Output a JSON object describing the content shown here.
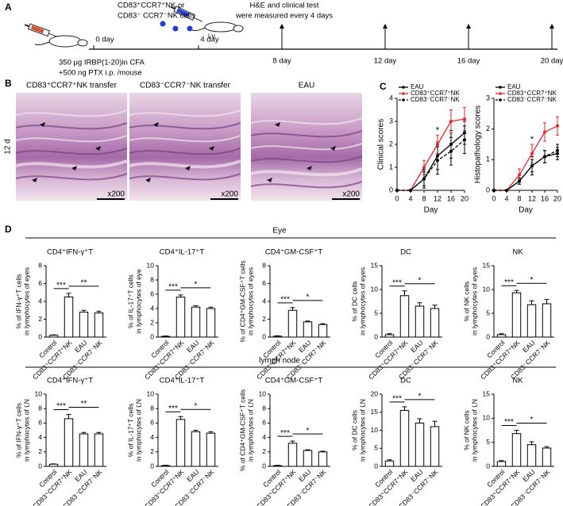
{
  "panel_labels": [
    "A",
    "B",
    "C",
    "D"
  ],
  "panel_a": {
    "cells_line1": "CD83⁺CCR7⁺NK or",
    "cells_line2": "CD83⁻ CCR7⁻NK cells",
    "route": "i.v.",
    "measure_line1": "H&E and clinical test",
    "measure_line2": "were measured every 4 days",
    "immunization_line1": "350 μg IRBP(1-20)in CFA",
    "immunization_line2": "+500 ng PTX i.p. /mouse",
    "days": [
      "0 day",
      "4 day",
      "8 day",
      "12 day",
      "16 day",
      "20 day"
    ]
  },
  "panel_b": {
    "side_label": "12 d",
    "images": [
      {
        "caption": "CD83⁺CCR7⁺NK transfer",
        "magnification": "x200"
      },
      {
        "caption": "CD83⁻CCR7⁻NK transfer",
        "magnification": "x200"
      },
      {
        "caption": "EAU",
        "magnification": "x200"
      }
    ]
  },
  "panel_d": {
    "row_headers": [
      "Eye",
      "lymph node"
    ]
  },
  "chart_data": [
    {
      "type": "line",
      "ylabel": "Clinical scores",
      "xlabel": "Day",
      "x": [
        0,
        4,
        8,
        12,
        16,
        20
      ],
      "xlim": [
        0,
        20
      ],
      "xticks": [
        0,
        4,
        8,
        12,
        16,
        20
      ],
      "ylim": [
        0,
        4
      ],
      "yticks": [
        0,
        1,
        2,
        3,
        4
      ],
      "series": [
        {
          "name": "EAU",
          "color": "#000000",
          "dash": false,
          "values": [
            0,
            0,
            0.5,
            1.5,
            2,
            2.5
          ],
          "errors": [
            0,
            0,
            0.3,
            0.6,
            0.6,
            0.5
          ]
        },
        {
          "name": "CD83⁺CCR7⁺NK",
          "color": "#e8262b",
          "dash": false,
          "values": [
            0,
            0,
            1,
            2,
            3,
            3.1
          ],
          "errors": [
            0,
            0,
            0.3,
            0.4,
            0.5,
            0.5
          ]
        },
        {
          "name": "CD83⁻CCR7⁻NK",
          "color": "#000000",
          "dash": true,
          "values": [
            0,
            0,
            0.5,
            1.3,
            1.7,
            2.2
          ],
          "errors": [
            0,
            0,
            0.4,
            0.6,
            0.6,
            0.6
          ]
        }
      ],
      "annotations": [
        {
          "text": "*",
          "x": 12
        }
      ]
    },
    {
      "type": "line",
      "ylabel": "Histopathology scores",
      "xlabel": "Day",
      "x": [
        0,
        4,
        8,
        12,
        16,
        20
      ],
      "xlim": [
        0,
        20
      ],
      "xticks": [
        0,
        4,
        8,
        12,
        16,
        20
      ],
      "ylim": [
        0,
        3
      ],
      "yticks": [
        0,
        1,
        2,
        3
      ],
      "series": [
        {
          "name": "EAU",
          "color": "#000000",
          "dash": false,
          "values": [
            0,
            0,
            0.3,
            0.8,
            1.1,
            1.2
          ],
          "errors": [
            0,
            0,
            0.1,
            0.3,
            0.2,
            0.2
          ]
        },
        {
          "name": "CD83⁺CCR7⁺NK",
          "color": "#e8262b",
          "dash": false,
          "values": [
            0,
            0,
            0.5,
            1.2,
            1.9,
            2.1
          ],
          "errors": [
            0,
            0,
            0.2,
            0.3,
            0.3,
            0.3
          ]
        },
        {
          "name": "CD83⁻CCR7⁻NK",
          "color": "#000000",
          "dash": true,
          "values": [
            0,
            0,
            0.3,
            0.8,
            1.1,
            1.3
          ],
          "errors": [
            0,
            0,
            0.1,
            0.2,
            0.2,
            0.2
          ]
        }
      ],
      "annotations": [
        {
          "text": "*",
          "x": 12
        }
      ]
    },
    {
      "type": "bar",
      "title": "CD4⁺IFN-γ⁺T",
      "ylabel": [
        "% of IFN-γ⁺T cells",
        "in lymphocytes of eyes"
      ],
      "categories": [
        "Control",
        "CD83⁺CCR7⁺NK",
        "EAU",
        "CD83⁻CCR7⁻NK"
      ],
      "values": [
        0.2,
        4.5,
        2.8,
        2.7
      ],
      "errors": [
        0.05,
        0.4,
        0.2,
        0.2
      ],
      "ylim": [
        0,
        8
      ],
      "yticks": [
        0,
        2,
        4,
        6,
        8
      ],
      "color": "#ffffff",
      "annotations": [
        {
          "text": "***",
          "between": [
            "Control",
            "CD83⁺CCR7⁺NK"
          ]
        },
        {
          "text": "**",
          "between": [
            "CD83⁺CCR7⁺NK",
            "CD83⁻CCR7⁻NK"
          ]
        }
      ]
    },
    {
      "type": "bar",
      "title": "CD4⁺IL-17⁺T",
      "ylabel": [
        "% of IL-17⁺T cells",
        "in lymphocytes of eye"
      ],
      "categories": [
        "Control",
        "CD83⁺CCR7⁺NK",
        "EAU",
        "CD83⁻CCR7⁻NK"
      ],
      "values": [
        0.1,
        5.6,
        4.2,
        4.0
      ],
      "errors": [
        0.05,
        0.3,
        0.2,
        0.2
      ],
      "ylim": [
        0,
        10
      ],
      "yticks": [
        0,
        2,
        4,
        6,
        8,
        10
      ],
      "color": "#ffffff",
      "annotations": [
        {
          "text": "***",
          "between": [
            "Control",
            "CD83⁺CCR7⁺NK"
          ]
        },
        {
          "text": "*",
          "between": [
            "CD83⁺CCR7⁺NK",
            "CD83⁻CCR7⁻NK"
          ]
        }
      ]
    },
    {
      "type": "bar",
      "title": "CD4⁺GM-CSF⁺T",
      "ylabel": [
        "% of CD4⁺GM-CSF⁺T cells",
        "in lymphocytes of eyes"
      ],
      "categories": [
        "Control",
        "CD83⁺CCR7⁺NK",
        "EAU",
        "CD83⁻CCR7⁻NK"
      ],
      "values": [
        0.1,
        3.0,
        1.7,
        1.4
      ],
      "errors": [
        0.05,
        0.3,
        0.1,
        0.1
      ],
      "ylim": [
        0,
        8
      ],
      "yticks": [
        0,
        2,
        4,
        6,
        8
      ],
      "color": "#ffffff",
      "annotations": [
        {
          "text": "***",
          "between": [
            "Control",
            "CD83⁺CCR7⁺NK"
          ]
        },
        {
          "text": "*",
          "between": [
            "CD83⁺CCR7⁺NK",
            "CD83⁻CCR7⁻NK"
          ]
        }
      ]
    },
    {
      "type": "bar",
      "title": "DC",
      "ylabel": [
        "% of DC cells",
        "in lymphocytes of eyes"
      ],
      "categories": [
        "Control",
        "CD83⁺CCR7⁺NK",
        "EAU",
        "CD83⁻CCR7⁻NK"
      ],
      "values": [
        0.5,
        8.7,
        6.5,
        6.0
      ],
      "errors": [
        0.2,
        1.0,
        0.7,
        0.7
      ],
      "ylim": [
        0,
        15
      ],
      "yticks": [
        0,
        5,
        10,
        15
      ],
      "color": "#ffffff",
      "annotations": [
        {
          "text": "***",
          "between": [
            "Control",
            "CD83⁺CCR7⁺NK"
          ]
        },
        {
          "text": "*",
          "between": [
            "CD83⁺CCR7⁺NK",
            "CD83⁻CCR7⁻NK"
          ]
        }
      ]
    },
    {
      "type": "bar",
      "title": "NK",
      "ylabel": [
        "% of NK cells",
        "in lymphocytes of eyes"
      ],
      "categories": [
        "Control",
        "CD83⁺CCR7⁺NK",
        "EAU",
        "CD83⁻CCR7⁻NK"
      ],
      "values": [
        0.5,
        9.3,
        6.8,
        7.0
      ],
      "errors": [
        0.2,
        0.5,
        0.8,
        0.9
      ],
      "ylim": [
        0,
        15
      ],
      "yticks": [
        0,
        5,
        10,
        15
      ],
      "color": "#ffffff",
      "annotations": [
        {
          "text": "***",
          "between": [
            "Control",
            "CD83⁺CCR7⁺NK"
          ]
        },
        {
          "text": "*",
          "between": [
            "CD83⁺CCR7⁺NK",
            "CD83⁻CCR7⁻NK"
          ]
        }
      ]
    },
    {
      "type": "bar",
      "title": "CD4⁺IFN-γ⁺T",
      "ylabel": [
        "% of IFN-γ⁺T cells",
        "in lymphocytes of LN"
      ],
      "categories": [
        "Control",
        "CD83⁺CCR7⁺NK",
        "EAU",
        "CD83⁻CCR7⁻NK"
      ],
      "values": [
        0.3,
        6.6,
        4.5,
        4.5
      ],
      "errors": [
        0.05,
        0.6,
        0.2,
        0.2
      ],
      "ylim": [
        0,
        10
      ],
      "yticks": [
        0,
        2,
        4,
        6,
        8,
        10
      ],
      "color": "#ffffff",
      "annotations": [
        {
          "text": "***",
          "between": [
            "Control",
            "CD83⁺CCR7⁺NK"
          ]
        },
        {
          "text": "**",
          "between": [
            "CD83⁺CCR7⁺NK",
            "CD83⁻CCR7⁻NK"
          ]
        }
      ]
    },
    {
      "type": "bar",
      "title": "CD4⁺IL-17⁺T",
      "ylabel": [
        "% of IL-17⁺T cells",
        "in lymphocytes of LN"
      ],
      "categories": [
        "Control",
        "CD83⁺CCR7⁺NK",
        "EAU",
        "CD83⁻CCR7⁻NK"
      ],
      "values": [
        0.1,
        6.5,
        4.8,
        4.6
      ],
      "errors": [
        0.05,
        0.4,
        0.2,
        0.2
      ],
      "ylim": [
        0,
        10
      ],
      "yticks": [
        0,
        2,
        4,
        6,
        8,
        10
      ],
      "color": "#ffffff",
      "annotations": [
        {
          "text": "***",
          "between": [
            "Control",
            "CD83⁺CCR7⁺NK"
          ]
        },
        {
          "text": "*",
          "between": [
            "CD83⁺CCR7⁺NK",
            "CD83⁻CCR7⁻NK"
          ]
        }
      ]
    },
    {
      "type": "bar",
      "title": "CD4⁺GM-CSF⁺T",
      "ylabel": [
        "% of CD4⁺GM-CSF⁺T cells",
        "in lymphocytes of LN"
      ],
      "categories": [
        "Control",
        "CD83⁺CCR7⁺NK",
        "EAU",
        "CD83⁻CCR7⁻NK"
      ],
      "values": [
        0.1,
        3.2,
        2.2,
        2.0
      ],
      "errors": [
        0.05,
        0.3,
        0.1,
        0.1
      ],
      "ylim": [
        0,
        10
      ],
      "yticks": [
        0,
        2,
        4,
        6,
        8,
        10
      ],
      "color": "#ffffff",
      "annotations": [
        {
          "text": "***",
          "between": [
            "Control",
            "CD83⁺CCR7⁺NK"
          ]
        },
        {
          "text": "*",
          "between": [
            "CD83⁺CCR7⁺NK",
            "CD83⁻CCR7⁻NK"
          ]
        }
      ]
    },
    {
      "type": "bar",
      "title": "DC",
      "ylabel": [
        "% of DC cells",
        "in lymphocytes of LN"
      ],
      "categories": [
        "Control",
        "CD83⁺CCR7⁺NK",
        "EAU",
        "CD83⁻CCR7⁻NK"
      ],
      "values": [
        1.5,
        15.5,
        12,
        11
      ],
      "errors": [
        0.3,
        1.0,
        1.2,
        1.5
      ],
      "ylim": [
        0,
        20
      ],
      "yticks": [
        0,
        5,
        10,
        15,
        20
      ],
      "color": "#ffffff",
      "annotations": [
        {
          "text": "***",
          "between": [
            "Control",
            "CD83⁺CCR7⁺NK"
          ]
        },
        {
          "text": "*",
          "between": [
            "CD83⁺CCR7⁺NK",
            "CD83⁻CCR7⁻NK"
          ]
        }
      ]
    },
    {
      "type": "bar",
      "title": "NK",
      "ylabel": [
        "% of NK cells",
        "in lymphocytes of LN"
      ],
      "categories": [
        "Control",
        "CD83⁺CCR7⁺NK",
        "EAU",
        "CD83⁻CCR7⁻NK"
      ],
      "values": [
        1.0,
        6.8,
        4.5,
        3.8
      ],
      "errors": [
        0.2,
        0.7,
        0.6,
        0.3
      ],
      "ylim": [
        0,
        15
      ],
      "yticks": [
        0,
        5,
        10,
        15
      ],
      "color": "#ffffff",
      "annotations": [
        {
          "text": "***",
          "between": [
            "Control",
            "CD83⁺CCR7⁺NK"
          ]
        },
        {
          "text": "*",
          "between": [
            "CD83⁺CCR7⁺NK",
            "CD83⁻CCR7⁻NK"
          ]
        }
      ]
    }
  ]
}
